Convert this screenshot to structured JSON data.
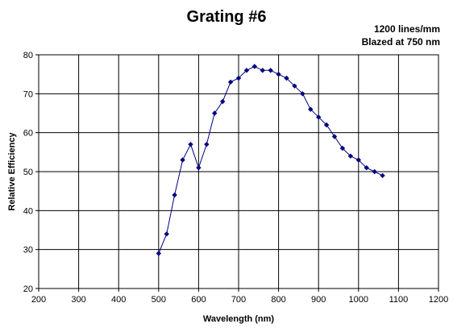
{
  "chart_data": {
    "type": "line",
    "title": "Grating #6",
    "annotation_lines": [
      "1200 lines/mm",
      "Blazed at 750 nm"
    ],
    "xlabel": "Wavelength (nm)",
    "ylabel": "Relative Efficiency",
    "xlim": [
      200,
      1200
    ],
    "ylim": [
      20,
      80
    ],
    "x_ticks": [
      200,
      300,
      400,
      500,
      600,
      700,
      800,
      900,
      1000,
      1100,
      1200
    ],
    "y_ticks": [
      20,
      30,
      40,
      50,
      60,
      70,
      80
    ],
    "grid": true,
    "series": [
      {
        "marker": "diamond",
        "color": "#000080",
        "x": [
          500,
          520,
          540,
          560,
          580,
          600,
          620,
          640,
          660,
          680,
          700,
          720,
          740,
          760,
          780,
          800,
          820,
          840,
          860,
          880,
          900,
          920,
          940,
          960,
          980,
          1000,
          1020,
          1040,
          1060
        ],
        "y": [
          29,
          34,
          44,
          53,
          57,
          51,
          57,
          65,
          68,
          73,
          74,
          76,
          77,
          76,
          76,
          75,
          74,
          72,
          70,
          66,
          64,
          62,
          59,
          56,
          54,
          53,
          51,
          50,
          49
        ]
      }
    ]
  }
}
